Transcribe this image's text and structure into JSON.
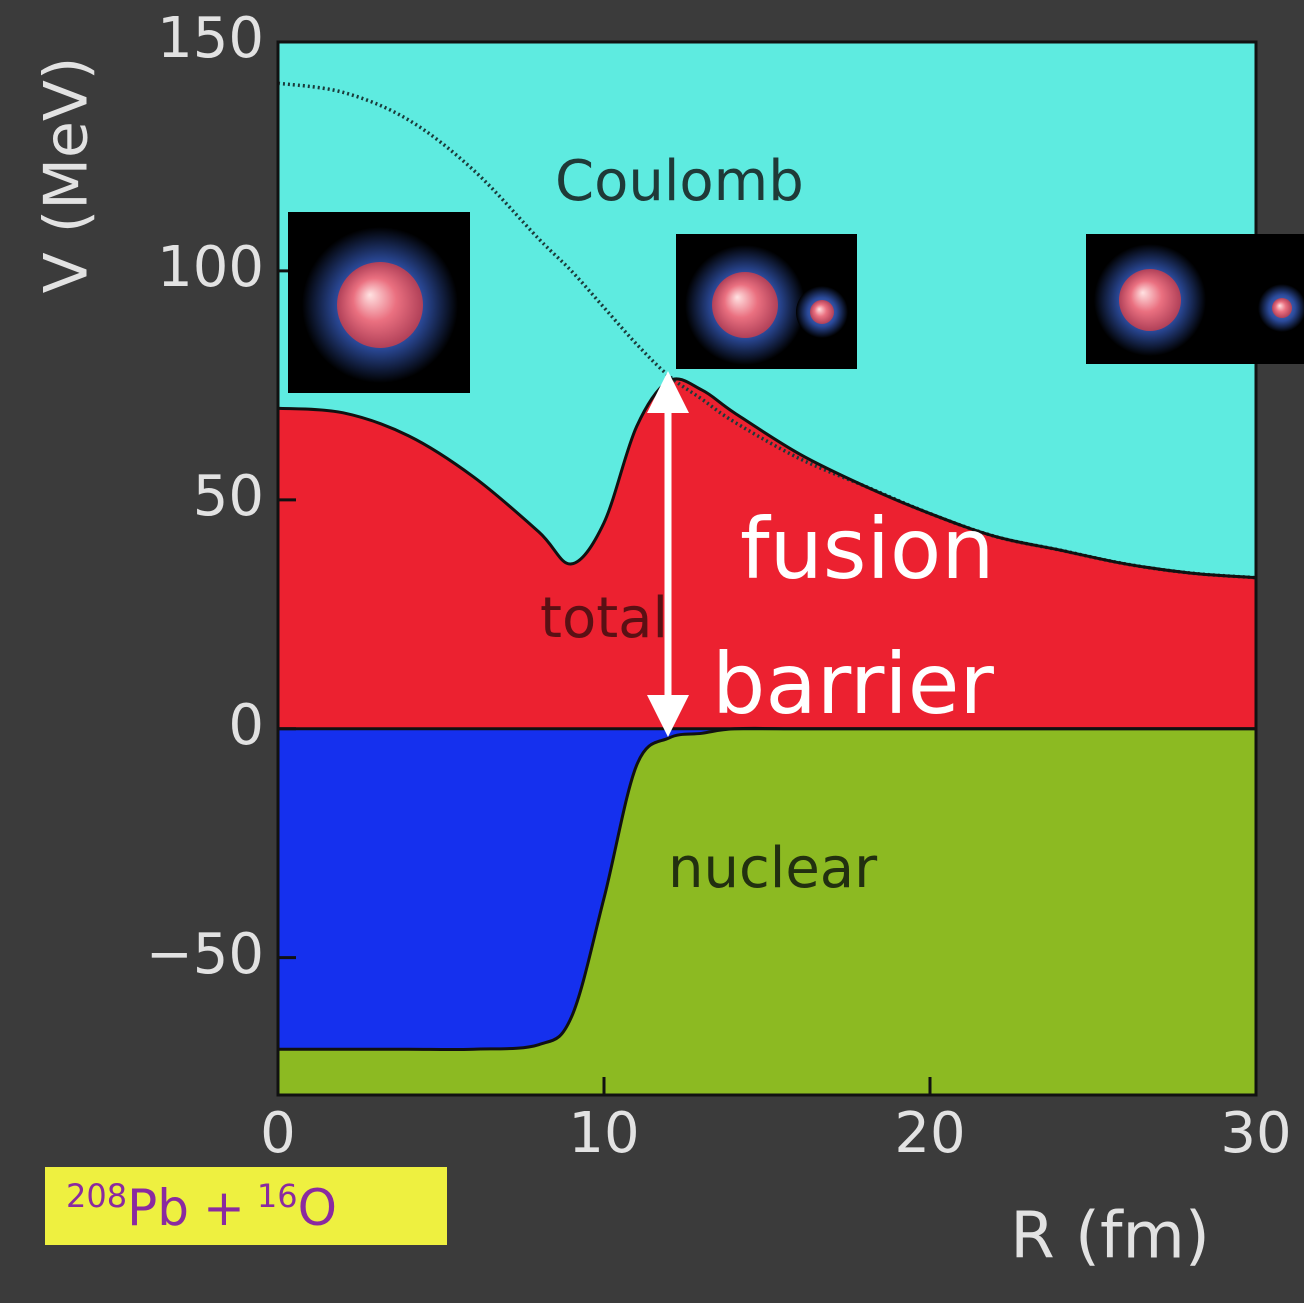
{
  "chart_data": {
    "type": "potential",
    "x": [
      0,
      2,
      4,
      6,
      8,
      9,
      10,
      11,
      12,
      13,
      14,
      16,
      18,
      20,
      22,
      24,
      26,
      28,
      30
    ],
    "series": [
      {
        "name": "Coulomb",
        "color": "#1a3a3a",
        "values": [
          141,
          139,
          133,
          122,
          107,
          100,
          92,
          84,
          77,
          72,
          67,
          59,
          53,
          47,
          42,
          39,
          36,
          34,
          33
        ]
      },
      {
        "name": "total",
        "color": "#111111",
        "fill": "#ec2130",
        "values": [
          70,
          69,
          64,
          55,
          43,
          36,
          45,
          66,
          76,
          74,
          69,
          60,
          53,
          47,
          42,
          39,
          36,
          34,
          33
        ]
      },
      {
        "name": "nuclear",
        "color": "#111111",
        "fill": "#1530ee",
        "values": [
          -70,
          -70,
          -70,
          -70,
          -69,
          -63,
          -37,
          -8,
          -2,
          -1,
          0,
          0,
          0,
          0,
          0,
          0,
          0,
          0,
          0
        ]
      }
    ],
    "above_color": "#5eebe0",
    "below_color": "#8cba22",
    "xlim": [
      0,
      30
    ],
    "ylim": [
      -80,
      150
    ],
    "xticks": [
      0,
      10,
      20,
      30
    ],
    "yticks": [
      {
        "value": -50,
        "label": "−50"
      },
      0,
      50,
      100,
      150
    ],
    "xlabel": "R (fm)",
    "ylabel": "V (MeV)",
    "barrier_label": [
      "fusion",
      "barrier"
    ],
    "reaction": [
      "208",
      "Pb",
      "+",
      "16",
      "O"
    ]
  }
}
